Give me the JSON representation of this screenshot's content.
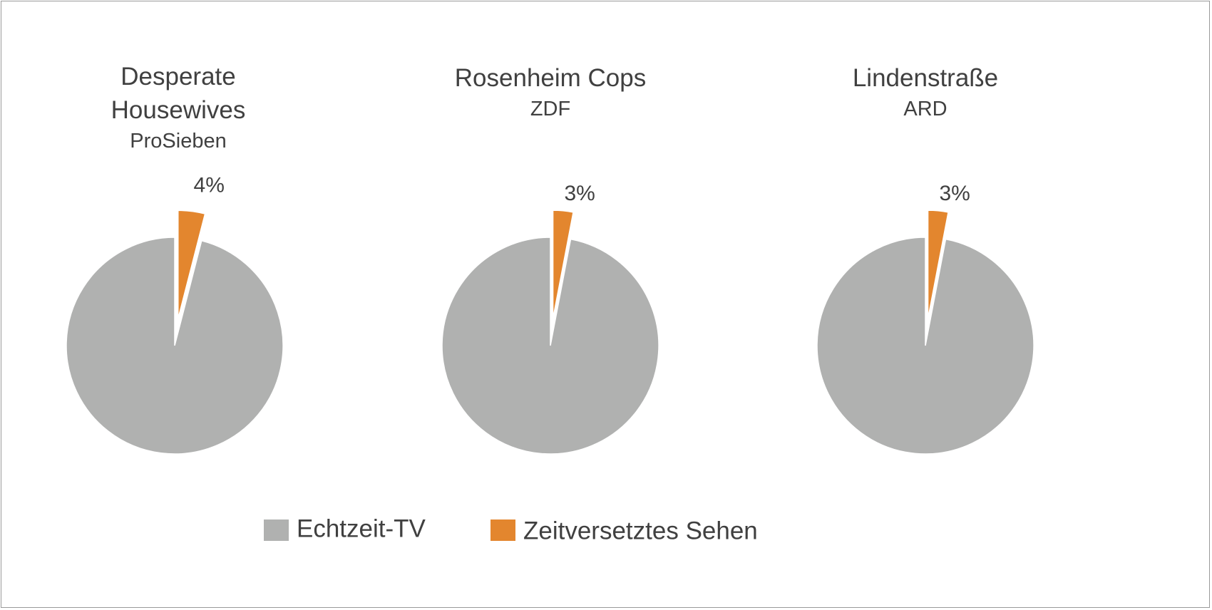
{
  "legend": {
    "categories": [
      "Echtzeit-TV",
      "Zeitversetztes Sehen"
    ],
    "colors": [
      "#b0b1b0",
      "#e3862e"
    ]
  },
  "chart_data": [
    {
      "type": "pie",
      "title": "Desperate Housewives",
      "subtitle": "ProSieben",
      "values": [
        96,
        4
      ],
      "value_labels": [
        null,
        "4%"
      ]
    },
    {
      "type": "pie",
      "title": "Rosenheim Cops",
      "subtitle": "ZDF",
      "values": [
        97,
        3
      ],
      "value_labels": [
        null,
        "3%"
      ]
    },
    {
      "type": "pie",
      "title": "Lindenstraße",
      "subtitle": "ARD",
      "values": [
        97,
        3
      ],
      "value_labels": [
        null,
        "3%"
      ]
    }
  ]
}
